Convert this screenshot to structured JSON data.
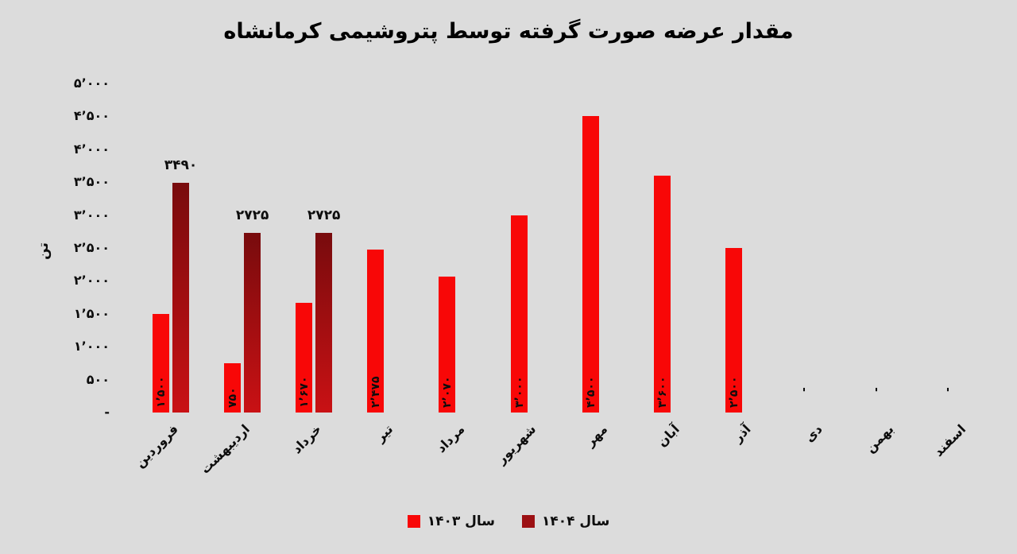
{
  "chart_data": {
    "type": "bar",
    "title": "مقدار عرضه صورت گرفته توسط پتروشیمی کرمانشاه",
    "ylabel": "تن",
    "ylim": [
      0,
      5000
    ],
    "grid": false,
    "legend_position": "bottom",
    "background_color": "#dcdcdc",
    "y_ticks": [
      {
        "value": 5000,
        "label": "۵’۰۰۰"
      },
      {
        "value": 4500,
        "label": "۴’۵۰۰"
      },
      {
        "value": 4000,
        "label": "۴’۰۰۰"
      },
      {
        "value": 3500,
        "label": "۳’۵۰۰"
      },
      {
        "value": 3000,
        "label": "۳’۰۰۰"
      },
      {
        "value": 2500,
        "label": "۲’۵۰۰"
      },
      {
        "value": 2000,
        "label": "۲’۰۰۰"
      },
      {
        "value": 1500,
        "label": "۱’۵۰۰"
      },
      {
        "value": 1000,
        "label": "۱’۰۰۰"
      },
      {
        "value": 500,
        "label": "۵۰۰"
      },
      {
        "value": 0,
        "label": "-"
      }
    ],
    "categories": [
      "فروردین",
      "اردیبهشت",
      "خرداد",
      "تیر",
      "مرداد",
      "شهریور",
      "مهر",
      "آبان",
      "آذر",
      "دی",
      "بهمن",
      "اسفند"
    ],
    "series": [
      {
        "name": "سال ۱۴۰۳",
        "color": "#f80707",
        "values": [
          1500,
          750,
          1670,
          2475,
          2070,
          3000,
          4500,
          3600,
          2500,
          0,
          0,
          0
        ],
        "data_labels": [
          "۱’۵۰۰",
          "۷۵۰",
          "۱’۶۷۰",
          "۲’۴۷۵",
          "۲’۰۷۰",
          "۳’۰۰۰",
          "۴’۵۰۰",
          "۳’۶۰۰",
          "۲’۵۰۰",
          "-",
          "-",
          "-"
        ],
        "label_placement": "inside-end-rotated"
      },
      {
        "name": "سال ۱۴۰۴",
        "color": "#9c1013",
        "gradient": [
          "#780b0d",
          "#c91114"
        ],
        "values": [
          3490,
          2725,
          2725,
          null,
          null,
          null,
          null,
          null,
          null,
          null,
          null,
          null
        ],
        "data_labels": [
          "۳۴۹۰",
          "۲۷۲۵",
          "۲۷۲۵",
          "",
          "",
          "",
          "",
          "",
          "",
          "",
          "",
          ""
        ],
        "label_placement": "outside-end"
      }
    ],
    "legend": [
      {
        "label": "سال ۱۴۰۳",
        "color": "#f80707"
      },
      {
        "label": "سال ۱۴۰۴",
        "color": "#9c1013"
      }
    ]
  }
}
